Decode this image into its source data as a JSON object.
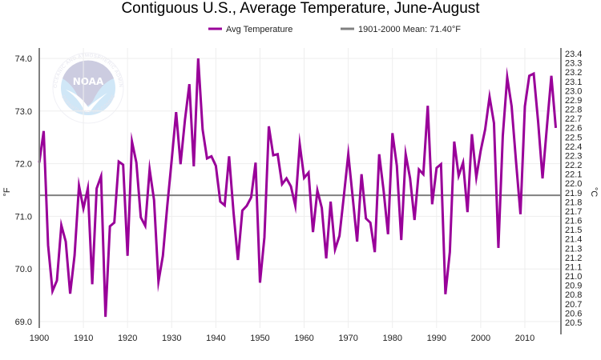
{
  "chart_data": {
    "type": "line",
    "title": "Contiguous U.S., Average Temperature, June-August",
    "xlabel": "",
    "ylabel": "°F",
    "ylabel_right": "°C",
    "xlim": [
      1900,
      2018.2
    ],
    "ylim": [
      68.9,
      74.2
    ],
    "ylim_right": [
      20.5,
      23.4
    ],
    "grid": true,
    "legend_position": "top-center",
    "x_ticks": [
      "1900",
      "1910",
      "1920",
      "1930",
      "1940",
      "1950",
      "1960",
      "1970",
      "1980",
      "1990",
      "2000",
      "2010"
    ],
    "y_ticks": [
      "69.0",
      "70.0",
      "71.0",
      "72.0",
      "73.0",
      "74.0"
    ],
    "y_ticks_right": [
      "20.5",
      "20.6",
      "20.7",
      "20.8",
      "20.9",
      "21.0",
      "21.1",
      "21.2",
      "21.3",
      "21.4",
      "21.5",
      "21.6",
      "21.7",
      "21.8",
      "21.9",
      "22.0",
      "22.1",
      "22.2",
      "22.3",
      "22.4",
      "22.5",
      "22.6",
      "22.7",
      "22.8",
      "22.9",
      "23.0",
      "23.1",
      "23.2",
      "23.3",
      "23.4"
    ],
    "mean": {
      "label": "1901-2000 Mean: 71.40°F",
      "value": 71.4,
      "color": "#808080"
    },
    "series": [
      {
        "name": "Avg Temperature",
        "color": "#990099",
        "x_start": 1900,
        "values": [
          72.02,
          72.62,
          70.45,
          69.58,
          69.78,
          70.83,
          70.52,
          69.53,
          70.26,
          71.58,
          71.15,
          71.53,
          69.71,
          71.53,
          71.76,
          69.09,
          70.81,
          70.88,
          72.04,
          71.98,
          70.25,
          72.42,
          72.02,
          70.98,
          70.82,
          71.89,
          71.31,
          69.76,
          70.25,
          71.2,
          72.07,
          72.98,
          71.99,
          72.83,
          73.51,
          71.95,
          74.0,
          72.65,
          72.1,
          72.14,
          71.96,
          71.28,
          71.21,
          72.14,
          71.08,
          70.17,
          71.11,
          71.2,
          71.36,
          72.02,
          69.74,
          70.6,
          72.71,
          72.16,
          72.18,
          71.61,
          71.72,
          71.57,
          71.2,
          72.37,
          71.73,
          71.83,
          70.7,
          71.49,
          71.16,
          70.2,
          71.28,
          70.37,
          70.63,
          71.39,
          72.18,
          71.36,
          70.52,
          71.8,
          70.96,
          70.88,
          70.32,
          72.18,
          71.49,
          70.66,
          72.58,
          71.96,
          70.55,
          72.18,
          71.72,
          70.93,
          71.89,
          71.8,
          73.1,
          71.23,
          71.92,
          71.99,
          69.52,
          70.32,
          72.42,
          71.77,
          72.02,
          71.08,
          72.56,
          71.74,
          72.25,
          72.65,
          73.27,
          72.77,
          70.4,
          72.53,
          73.64,
          73.09,
          72.04,
          71.04,
          73.09,
          73.67,
          73.71,
          72.8,
          71.72,
          72.71,
          73.67,
          72.68
        ]
      }
    ]
  },
  "watermark": {
    "name": "NOAA",
    "ring_text_top": "NATIONAL OCEANIC AND ATMOSPHERIC ADMINISTRATION",
    "ring_text_bottom": "U.S. DEPARTMENT OF COMMERCE"
  }
}
